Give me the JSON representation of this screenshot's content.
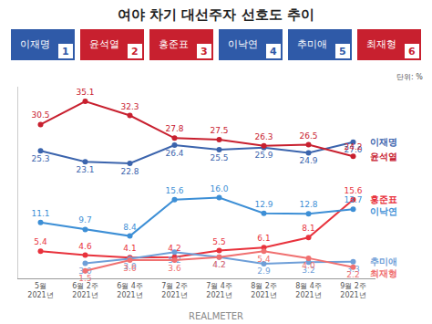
{
  "chart_data": {
    "type": "line",
    "title": "여야 차기 대선주자 선호도 추이",
    "unit": "단위: %",
    "source": "REALMETER",
    "candidates": [
      {
        "number": "1",
        "name": "이재명",
        "color": "#2f5aa8"
      },
      {
        "number": "2",
        "name": "윤석열",
        "color": "#c8202f"
      },
      {
        "number": "3",
        "name": "홍준표",
        "color": "#c8202f"
      },
      {
        "number": "4",
        "name": "이낙연",
        "color": "#2f5aa8"
      },
      {
        "number": "5",
        "name": "추미애",
        "color": "#2f5aa8"
      },
      {
        "number": "6",
        "name": "최재형",
        "color": "#c8202f"
      }
    ],
    "categories": [
      "5월\n2021년",
      "6월 2주\n2021년",
      "6월 4주\n2021년",
      "7월 2주\n2021년",
      "7월 4주\n2021년",
      "8월 2주\n2021년",
      "8월 4주\n2021년",
      "9월 2주\n2021년"
    ],
    "ylim": [
      0,
      38
    ],
    "tick_labels": "x",
    "grid": false,
    "data_labels": true,
    "marker": "circle",
    "series": [
      {
        "name": "이재명",
        "color": "#3b64ad",
        "values": [
          25.3,
          23.1,
          22.8,
          26.4,
          25.5,
          25.9,
          24.9,
          27.0
        ],
        "value_labels": [
          "25.3",
          "23.1",
          "22.8",
          "26.4",
          "25.5",
          "25.9",
          "24.9",
          "27.0"
        ]
      },
      {
        "name": "윤석열",
        "color": "#c8202f",
        "values": [
          30.5,
          35.1,
          32.3,
          27.8,
          27.5,
          26.3,
          26.5,
          24.2
        ],
        "value_labels": [
          "30.5",
          "35.1",
          "32.3",
          "27.8",
          "27.5",
          "26.3",
          "26.5",
          "24.2"
        ]
      },
      {
        "name": "홍준표",
        "color": "#e8323c",
        "values": [
          5.4,
          4.6,
          4.1,
          4.2,
          5.5,
          6.1,
          8.1,
          15.6
        ],
        "value_labels": [
          "5.4",
          "4.6",
          "4.1",
          "4.2",
          "5.5",
          "6.1",
          "8.1",
          "15.6"
        ]
      },
      {
        "name": "이낙연",
        "color": "#3d8fd6",
        "values": [
          11.1,
          9.7,
          8.4,
          15.6,
          16.0,
          12.9,
          12.8,
          13.7
        ],
        "value_labels": [
          "11.1",
          "9.7",
          "8.4",
          "15.6",
          "16.0",
          "12.9",
          "12.8",
          "13.7"
        ]
      },
      {
        "name": "추미애",
        "color": "#6f9fd8",
        "values": [
          null,
          3.0,
          3.9,
          5.2,
          4.2,
          2.9,
          3.2,
          3.3
        ],
        "value_labels": [
          null,
          "3.0",
          "3.9",
          "5.2",
          "4.2",
          "2.9",
          "3.2",
          "3.3"
        ]
      },
      {
        "name": "최재형",
        "color": "#f07070",
        "values": [
          null,
          1.5,
          3.6,
          3.6,
          4.2,
          5.4,
          4.0,
          2.2
        ],
        "value_labels": [
          null,
          "1.5",
          "3.6",
          "3.6",
          "4.2",
          "5.4",
          "4.0",
          "2.2"
        ]
      }
    ]
  }
}
